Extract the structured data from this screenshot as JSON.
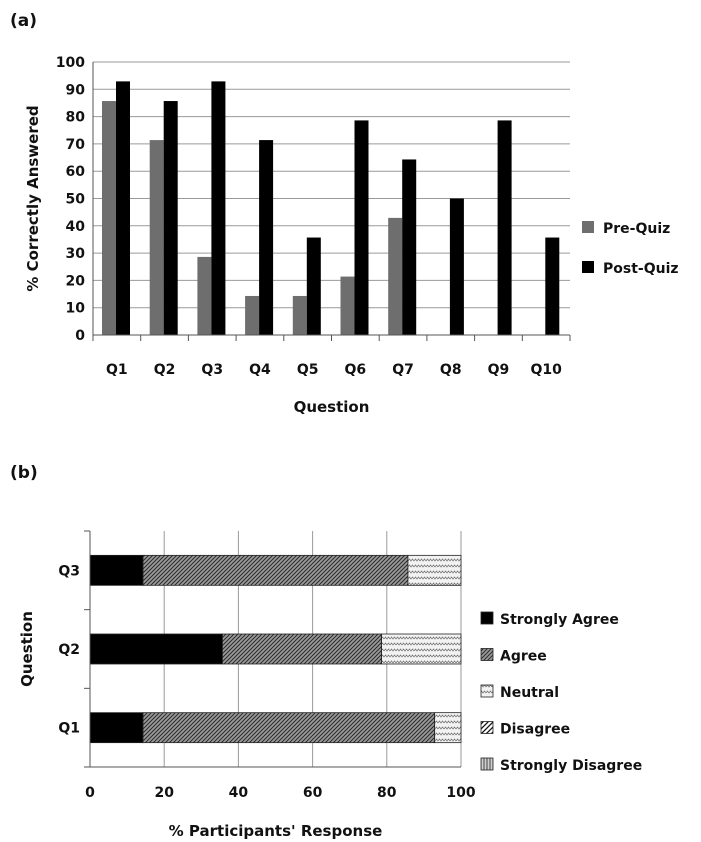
{
  "chart_data": [
    {
      "panel_label": "(a)",
      "type": "bar",
      "categories": [
        "Q1",
        "Q2",
        "Q3",
        "Q4",
        "Q5",
        "Q6",
        "Q7",
        "Q8",
        "Q9",
        "Q10"
      ],
      "series": [
        {
          "name": "Pre-Quiz",
          "color": "#6e6e6e",
          "values": [
            85.7,
            71.4,
            28.6,
            14.3,
            14.3,
            21.4,
            42.9,
            0,
            0,
            0
          ]
        },
        {
          "name": "Post-Quiz",
          "color": "#000000",
          "values": [
            92.9,
            85.7,
            92.9,
            71.4,
            35.7,
            78.6,
            64.3,
            50,
            78.6,
            35.7
          ]
        }
      ],
      "xlabel": "Question",
      "ylabel": "% Correctly Answered",
      "ylim": [
        0,
        100
      ],
      "yticks": [
        0,
        10,
        20,
        30,
        40,
        50,
        60,
        70,
        80,
        90,
        100
      ],
      "grid": true,
      "legend_position": "right"
    },
    {
      "panel_label": "(b)",
      "type": "bar",
      "orientation": "horizontal",
      "stacked": true,
      "categories": [
        "Q1",
        "Q2",
        "Q3"
      ],
      "series": [
        {
          "name": "Strongly Agree",
          "pattern": "solid-black",
          "values": [
            14.3,
            35.7,
            14.3
          ]
        },
        {
          "name": "Agree",
          "pattern": "dense-crosshatch",
          "values": [
            78.6,
            42.9,
            71.4
          ]
        },
        {
          "name": "Neutral",
          "pattern": "light-zigzag",
          "values": [
            7.1,
            21.4,
            14.3
          ]
        },
        {
          "name": "Disagree",
          "pattern": "diagonal-hatch",
          "values": [
            0,
            0,
            0
          ]
        },
        {
          "name": "Strongly Disagree",
          "pattern": "vertical-lines",
          "values": [
            0,
            0,
            0
          ]
        }
      ],
      "xlabel": "% Participants' Response",
      "ylabel": "Question",
      "xlim": [
        0,
        100
      ],
      "xticks": [
        0,
        20,
        40,
        60,
        80,
        100
      ],
      "grid": true,
      "legend_position": "right"
    }
  ]
}
